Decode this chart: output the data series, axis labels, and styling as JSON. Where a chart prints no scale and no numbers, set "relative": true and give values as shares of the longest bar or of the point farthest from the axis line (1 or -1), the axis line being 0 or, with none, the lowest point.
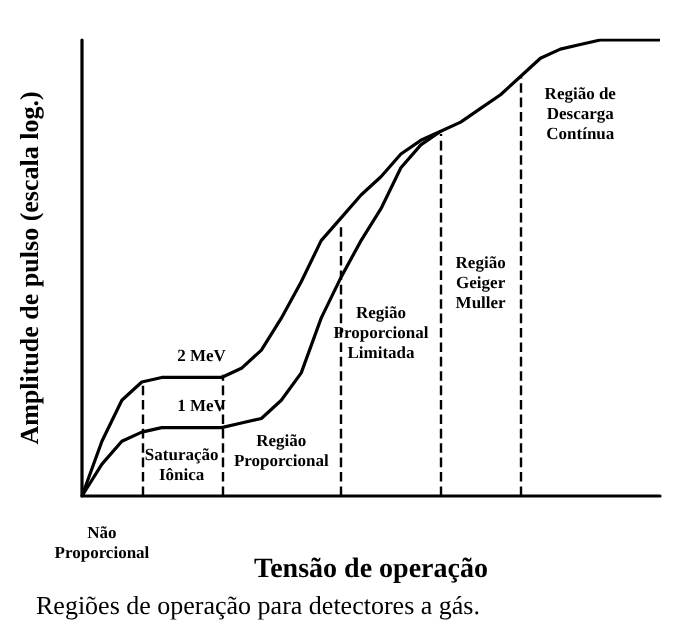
{
  "chart_data": {
    "type": "line",
    "relative": true,
    "xlabel": "Tensão de operação",
    "ylabel": "Amplitude de pulso (escala log.)",
    "categories": [
      null,
      null,
      null,
      null,
      null,
      null,
      null,
      null,
      null,
      null,
      null,
      null,
      null,
      null,
      null,
      null,
      null,
      null,
      null,
      null,
      null,
      null,
      null,
      null,
      null,
      null,
      null,
      null,
      null,
      null
    ],
    "tick_labels": false,
    "marker": "none",
    "line_style": "solid",
    "series": [
      {
        "color": "#000000",
        "values": [
          0,
          0.12,
          0.21,
          0.25,
          0.26,
          0.26,
          0.26,
          0.26,
          0.28,
          0.32,
          0.39,
          0.47,
          0.56,
          0.61,
          0.66,
          0.7,
          0.75,
          0.78,
          0.8,
          0.82,
          0.85,
          0.88,
          0.92,
          0.96,
          0.98,
          0.99,
          1,
          1,
          1,
          1
        ]
      },
      {
        "color": "#000000",
        "values": [
          0,
          0.07,
          0.12,
          0.14,
          0.15,
          0.15,
          0.15,
          0.15,
          0.16,
          0.17,
          0.21,
          0.27,
          0.39,
          0.48,
          0.56,
          0.63,
          0.72,
          0.77,
          0.8,
          null,
          null,
          null,
          null,
          null,
          null,
          null,
          null,
          null,
          null,
          null
        ]
      }
    ],
    "annotations": [
      "2 MeV",
      "1 MeV",
      "Saturação\nIônica",
      "Região\nProporcional",
      "Região\nProporcional\nLimitada",
      "Região\nGeiger\nMuller",
      "Região de\nDescarga\nContínua",
      "Não\nProporcional",
      "Regiões de operação para detectores a gás."
    ]
  }
}
